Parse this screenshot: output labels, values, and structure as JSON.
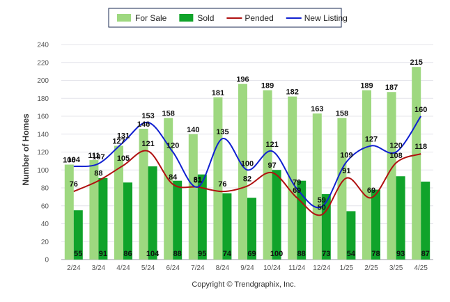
{
  "chart_data": {
    "type": "bar",
    "title": "",
    "xlabel": "",
    "ylabel": "Number of Homes",
    "ylim": [
      0,
      240
    ],
    "yticks": [
      0,
      20,
      40,
      60,
      80,
      100,
      120,
      140,
      160,
      180,
      200,
      220,
      240
    ],
    "grid": "horizontal",
    "legend_position": "top-center",
    "categories": [
      "2/24",
      "3/24",
      "4/24",
      "5/24",
      "6/24",
      "7/24",
      "8/24",
      "9/24",
      "10/24",
      "11/24",
      "12/24",
      "1/25",
      "2/25",
      "3/25",
      "4/25"
    ],
    "series": [
      {
        "name": "For Sale",
        "kind": "bar",
        "color": "#9ed880",
        "values": [
          106,
          111,
          127,
          146,
          158,
          140,
          181,
          196,
          189,
          182,
          163,
          158,
          189,
          187,
          215
        ]
      },
      {
        "name": "Sold",
        "kind": "bar",
        "color": "#10a32a",
        "values": [
          55,
          91,
          86,
          104,
          88,
          95,
          74,
          69,
          100,
          88,
          73,
          54,
          78,
          93,
          87
        ]
      },
      {
        "name": "Pended",
        "kind": "line",
        "color": "#b01010",
        "values": [
          76,
          88,
          105,
          121,
          84,
          81,
          76,
          82,
          97,
          69,
          50,
          91,
          69,
          108,
          118
        ]
      },
      {
        "name": "New Listing",
        "kind": "line",
        "color": "#1020d0",
        "values": [
          104,
          107,
          131,
          153,
          120,
          81,
          135,
          100,
          121,
          79,
          59,
          109,
          127,
          120,
          160
        ]
      }
    ]
  },
  "copyright": "Copyright © Trendgraphix, Inc."
}
